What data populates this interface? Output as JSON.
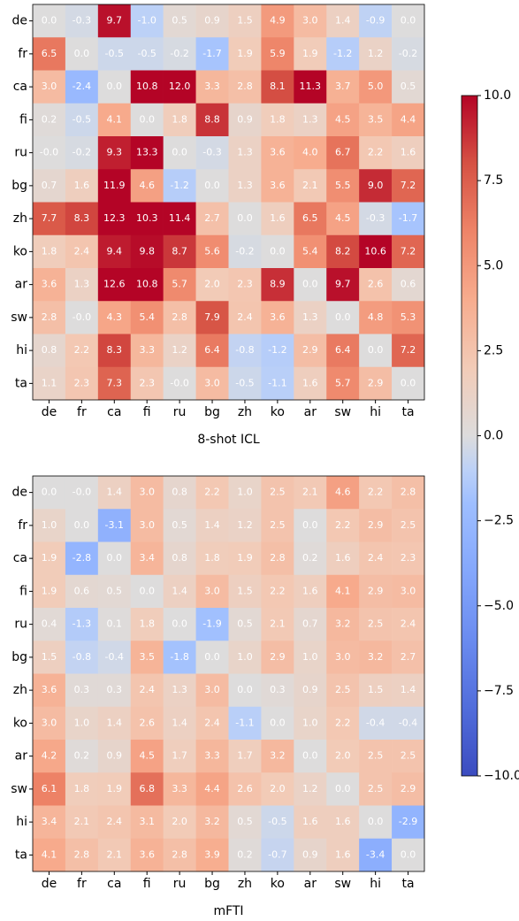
{
  "chart_data": [
    {
      "type": "heatmap",
      "xlabel": "8-shot ICL",
      "colormap": "coolwarm",
      "zlim": [
        -10,
        10
      ],
      "x": [
        "de",
        "fr",
        "ca",
        "fi",
        "ru",
        "bg",
        "zh",
        "ko",
        "ar",
        "sw",
        "hi",
        "ta"
      ],
      "y": [
        "de",
        "fr",
        "ca",
        "fi",
        "ru",
        "bg",
        "zh",
        "ko",
        "ar",
        "sw",
        "hi",
        "ta"
      ],
      "values": [
        [
          0.0,
          -0.3,
          9.7,
          -1.0,
          0.5,
          0.9,
          1.5,
          4.9,
          3.0,
          1.4,
          -0.9,
          0.0
        ],
        [
          6.5,
          0.0,
          -0.5,
          -0.5,
          -0.2,
          -1.7,
          1.9,
          5.9,
          1.9,
          -1.2,
          1.2,
          -0.2
        ],
        [
          3.0,
          -2.4,
          0.0,
          10.8,
          12.0,
          3.3,
          2.8,
          8.1,
          11.3,
          3.7,
          5.0,
          0.5
        ],
        [
          0.2,
          -0.5,
          4.1,
          0.0,
          1.8,
          8.8,
          0.9,
          1.8,
          1.3,
          4.5,
          3.5,
          4.4
        ],
        [
          -0.0,
          -0.2,
          9.3,
          13.3,
          0.0,
          -0.3,
          1.3,
          3.6,
          4.0,
          6.7,
          2.2,
          1.6
        ],
        [
          0.7,
          1.6,
          11.9,
          4.6,
          -1.2,
          0.0,
          1.3,
          3.6,
          2.1,
          5.5,
          9.0,
          7.2
        ],
        [
          7.7,
          8.3,
          12.3,
          10.3,
          11.4,
          2.7,
          0.0,
          1.6,
          6.5,
          4.5,
          -0.3,
          -1.7
        ],
        [
          1.8,
          2.4,
          9.4,
          9.8,
          8.7,
          5.6,
          -0.2,
          0.0,
          5.4,
          8.2,
          10.6,
          7.2
        ],
        [
          3.6,
          1.3,
          12.6,
          10.8,
          5.7,
          2.0,
          2.3,
          8.9,
          0.0,
          9.7,
          2.6,
          0.6
        ],
        [
          2.8,
          -0.0,
          4.3,
          5.4,
          2.8,
          7.9,
          2.4,
          3.6,
          1.3,
          0.0,
          4.8,
          5.3
        ],
        [
          0.8,
          2.2,
          8.3,
          3.3,
          1.2,
          6.4,
          -0.8,
          -1.2,
          2.9,
          6.4,
          0.0,
          7.2
        ],
        [
          1.1,
          2.3,
          7.3,
          2.3,
          -0.0,
          3.0,
          -0.5,
          -1.1,
          1.6,
          5.7,
          2.9,
          0.0
        ]
      ],
      "value_labels": [
        [
          "0.0",
          "-0.3",
          "9.7",
          "-1.0",
          "0.5",
          "0.9",
          "1.5",
          "4.9",
          "3.0",
          "1.4",
          "-0.9",
          "0.0"
        ],
        [
          "6.5",
          "0.0",
          "-0.5",
          "-0.5",
          "-0.2",
          "-1.7",
          "1.9",
          "5.9",
          "1.9",
          "-1.2",
          "1.2",
          "-0.2"
        ],
        [
          "3.0",
          "-2.4",
          "0.0",
          "10.8",
          "12.0",
          "3.3",
          "2.8",
          "8.1",
          "11.3",
          "3.7",
          "5.0",
          "0.5"
        ],
        [
          "0.2",
          "-0.5",
          "4.1",
          "0.0",
          "1.8",
          "8.8",
          "0.9",
          "1.8",
          "1.3",
          "4.5",
          "3.5",
          "4.4"
        ],
        [
          "-0.0",
          "-0.2",
          "9.3",
          "13.3",
          "0.0",
          "-0.3",
          "1.3",
          "3.6",
          "4.0",
          "6.7",
          "2.2",
          "1.6"
        ],
        [
          "0.7",
          "1.6",
          "11.9",
          "4.6",
          "-1.2",
          "0.0",
          "1.3",
          "3.6",
          "2.1",
          "5.5",
          "9.0",
          "7.2"
        ],
        [
          "7.7",
          "8.3",
          "12.3",
          "10.3",
          "11.4",
          "2.7",
          "0.0",
          "1.6",
          "6.5",
          "4.5",
          "-0.3",
          "-1.7"
        ],
        [
          "1.8",
          "2.4",
          "9.4",
          "9.8",
          "8.7",
          "5.6",
          "-0.2",
          "0.0",
          "5.4",
          "8.2",
          "10.6",
          "7.2"
        ],
        [
          "3.6",
          "1.3",
          "12.6",
          "10.8",
          "5.7",
          "2.0",
          "2.3",
          "8.9",
          "0.0",
          "9.7",
          "2.6",
          "0.6"
        ],
        [
          "2.8",
          "-0.0",
          "4.3",
          "5.4",
          "2.8",
          "7.9",
          "2.4",
          "3.6",
          "1.3",
          "0.0",
          "4.8",
          "5.3"
        ],
        [
          "0.8",
          "2.2",
          "8.3",
          "3.3",
          "1.2",
          "6.4",
          "-0.8",
          "-1.2",
          "2.9",
          "6.4",
          "0.0",
          "7.2"
        ],
        [
          "1.1",
          "2.3",
          "7.3",
          "2.3",
          "-0.0",
          "3.0",
          "-0.5",
          "-1.1",
          "1.6",
          "5.7",
          "2.9",
          "0.0"
        ]
      ]
    },
    {
      "type": "heatmap",
      "xlabel": "mFTI",
      "colormap": "coolwarm",
      "zlim": [
        -10,
        10
      ],
      "x": [
        "de",
        "fr",
        "ca",
        "fi",
        "ru",
        "bg",
        "zh",
        "ko",
        "ar",
        "sw",
        "hi",
        "ta"
      ],
      "y": [
        "de",
        "fr",
        "ca",
        "fi",
        "ru",
        "bg",
        "zh",
        "ko",
        "ar",
        "sw",
        "hi",
        "ta"
      ],
      "values": [
        [
          0.0,
          -0.0,
          1.4,
          3.0,
          0.8,
          2.2,
          1.0,
          2.5,
          2.1,
          4.6,
          2.2,
          2.8
        ],
        [
          1.0,
          0.0,
          -3.1,
          3.0,
          0.5,
          1.4,
          1.2,
          2.5,
          0.0,
          2.2,
          2.9,
          2.5
        ],
        [
          1.9,
          -2.8,
          0.0,
          3.4,
          0.8,
          1.8,
          1.9,
          2.8,
          0.2,
          1.6,
          2.4,
          2.3
        ],
        [
          1.9,
          0.6,
          0.5,
          0.0,
          1.4,
          3.0,
          1.5,
          2.2,
          1.6,
          4.1,
          2.9,
          3.0
        ],
        [
          0.4,
          -1.3,
          0.1,
          1.8,
          0.0,
          -1.9,
          0.5,
          2.1,
          0.7,
          3.2,
          2.5,
          2.4
        ],
        [
          1.5,
          -0.8,
          -0.4,
          3.5,
          -1.8,
          0.0,
          1.0,
          2.9,
          1.0,
          3.0,
          3.2,
          2.7
        ],
        [
          3.6,
          0.3,
          0.3,
          2.4,
          1.3,
          3.0,
          0.0,
          0.3,
          0.9,
          2.5,
          1.5,
          1.4
        ],
        [
          3.0,
          1.0,
          1.4,
          2.6,
          1.4,
          2.4,
          -1.1,
          0.0,
          1.0,
          2.2,
          -0.4,
          -0.4
        ],
        [
          4.2,
          0.2,
          0.9,
          4.5,
          1.7,
          3.3,
          1.7,
          3.2,
          0.0,
          2.0,
          2.5,
          2.5
        ],
        [
          6.1,
          1.8,
          1.9,
          6.8,
          3.3,
          4.4,
          2.6,
          2.0,
          1.2,
          0.0,
          2.5,
          2.9
        ],
        [
          3.4,
          2.1,
          2.4,
          3.1,
          2.0,
          3.2,
          0.5,
          -0.5,
          1.6,
          1.6,
          0.0,
          -2.9
        ],
        [
          4.1,
          2.8,
          2.1,
          3.6,
          2.8,
          3.9,
          0.2,
          -0.7,
          0.9,
          1.6,
          -3.4,
          0.0
        ]
      ],
      "value_labels": [
        [
          "0.0",
          "-0.0",
          "1.4",
          "3.0",
          "0.8",
          "2.2",
          "1.0",
          "2.5",
          "2.1",
          "4.6",
          "2.2",
          "2.8"
        ],
        [
          "1.0",
          "0.0",
          "-3.1",
          "3.0",
          "0.5",
          "1.4",
          "1.2",
          "2.5",
          "0.0",
          "2.2",
          "2.9",
          "2.5"
        ],
        [
          "1.9",
          "-2.8",
          "0.0",
          "3.4",
          "0.8",
          "1.8",
          "1.9",
          "2.8",
          "0.2",
          "1.6",
          "2.4",
          "2.3"
        ],
        [
          "1.9",
          "0.6",
          "0.5",
          "0.0",
          "1.4",
          "3.0",
          "1.5",
          "2.2",
          "1.6",
          "4.1",
          "2.9",
          "3.0"
        ],
        [
          "0.4",
          "-1.3",
          "0.1",
          "1.8",
          "0.0",
          "-1.9",
          "0.5",
          "2.1",
          "0.7",
          "3.2",
          "2.5",
          "2.4"
        ],
        [
          "1.5",
          "-0.8",
          "-0.4",
          "3.5",
          "-1.8",
          "0.0",
          "1.0",
          "2.9",
          "1.0",
          "3.0",
          "3.2",
          "2.7"
        ],
        [
          "3.6",
          "0.3",
          "0.3",
          "2.4",
          "1.3",
          "3.0",
          "0.0",
          "0.3",
          "0.9",
          "2.5",
          "1.5",
          "1.4"
        ],
        [
          "3.0",
          "1.0",
          "1.4",
          "2.6",
          "1.4",
          "2.4",
          "-1.1",
          "0.0",
          "1.0",
          "2.2",
          "-0.4",
          "-0.4"
        ],
        [
          "4.2",
          "0.2",
          "0.9",
          "4.5",
          "1.7",
          "3.3",
          "1.7",
          "3.2",
          "0.0",
          "2.0",
          "2.5",
          "2.5"
        ],
        [
          "6.1",
          "1.8",
          "1.9",
          "6.8",
          "3.3",
          "4.4",
          "2.6",
          "2.0",
          "1.2",
          "0.0",
          "2.5",
          "2.9"
        ],
        [
          "3.4",
          "2.1",
          "2.4",
          "3.1",
          "2.0",
          "3.2",
          "0.5",
          "-0.5",
          "1.6",
          "1.6",
          "0.0",
          "-2.9"
        ],
        [
          "4.1",
          "2.8",
          "2.1",
          "3.6",
          "2.8",
          "3.9",
          "0.2",
          "-0.7",
          "0.9",
          "1.6",
          "-3.4",
          "0.0"
        ]
      ]
    }
  ],
  "colorbar": {
    "lim": [
      -10,
      10
    ],
    "ticks": [
      {
        "value": 10,
        "label": "10.0"
      },
      {
        "value": 7.5,
        "label": "7.5"
      },
      {
        "value": 5,
        "label": "5.0"
      },
      {
        "value": 2.5,
        "label": "2.5"
      },
      {
        "value": 0,
        "label": "0.0"
      },
      {
        "value": -2.5,
        "label": "−2.5"
      },
      {
        "value": -5,
        "label": "−5.0"
      },
      {
        "value": -7.5,
        "label": "−7.5"
      },
      {
        "value": -10,
        "label": "−10.0"
      }
    ]
  }
}
